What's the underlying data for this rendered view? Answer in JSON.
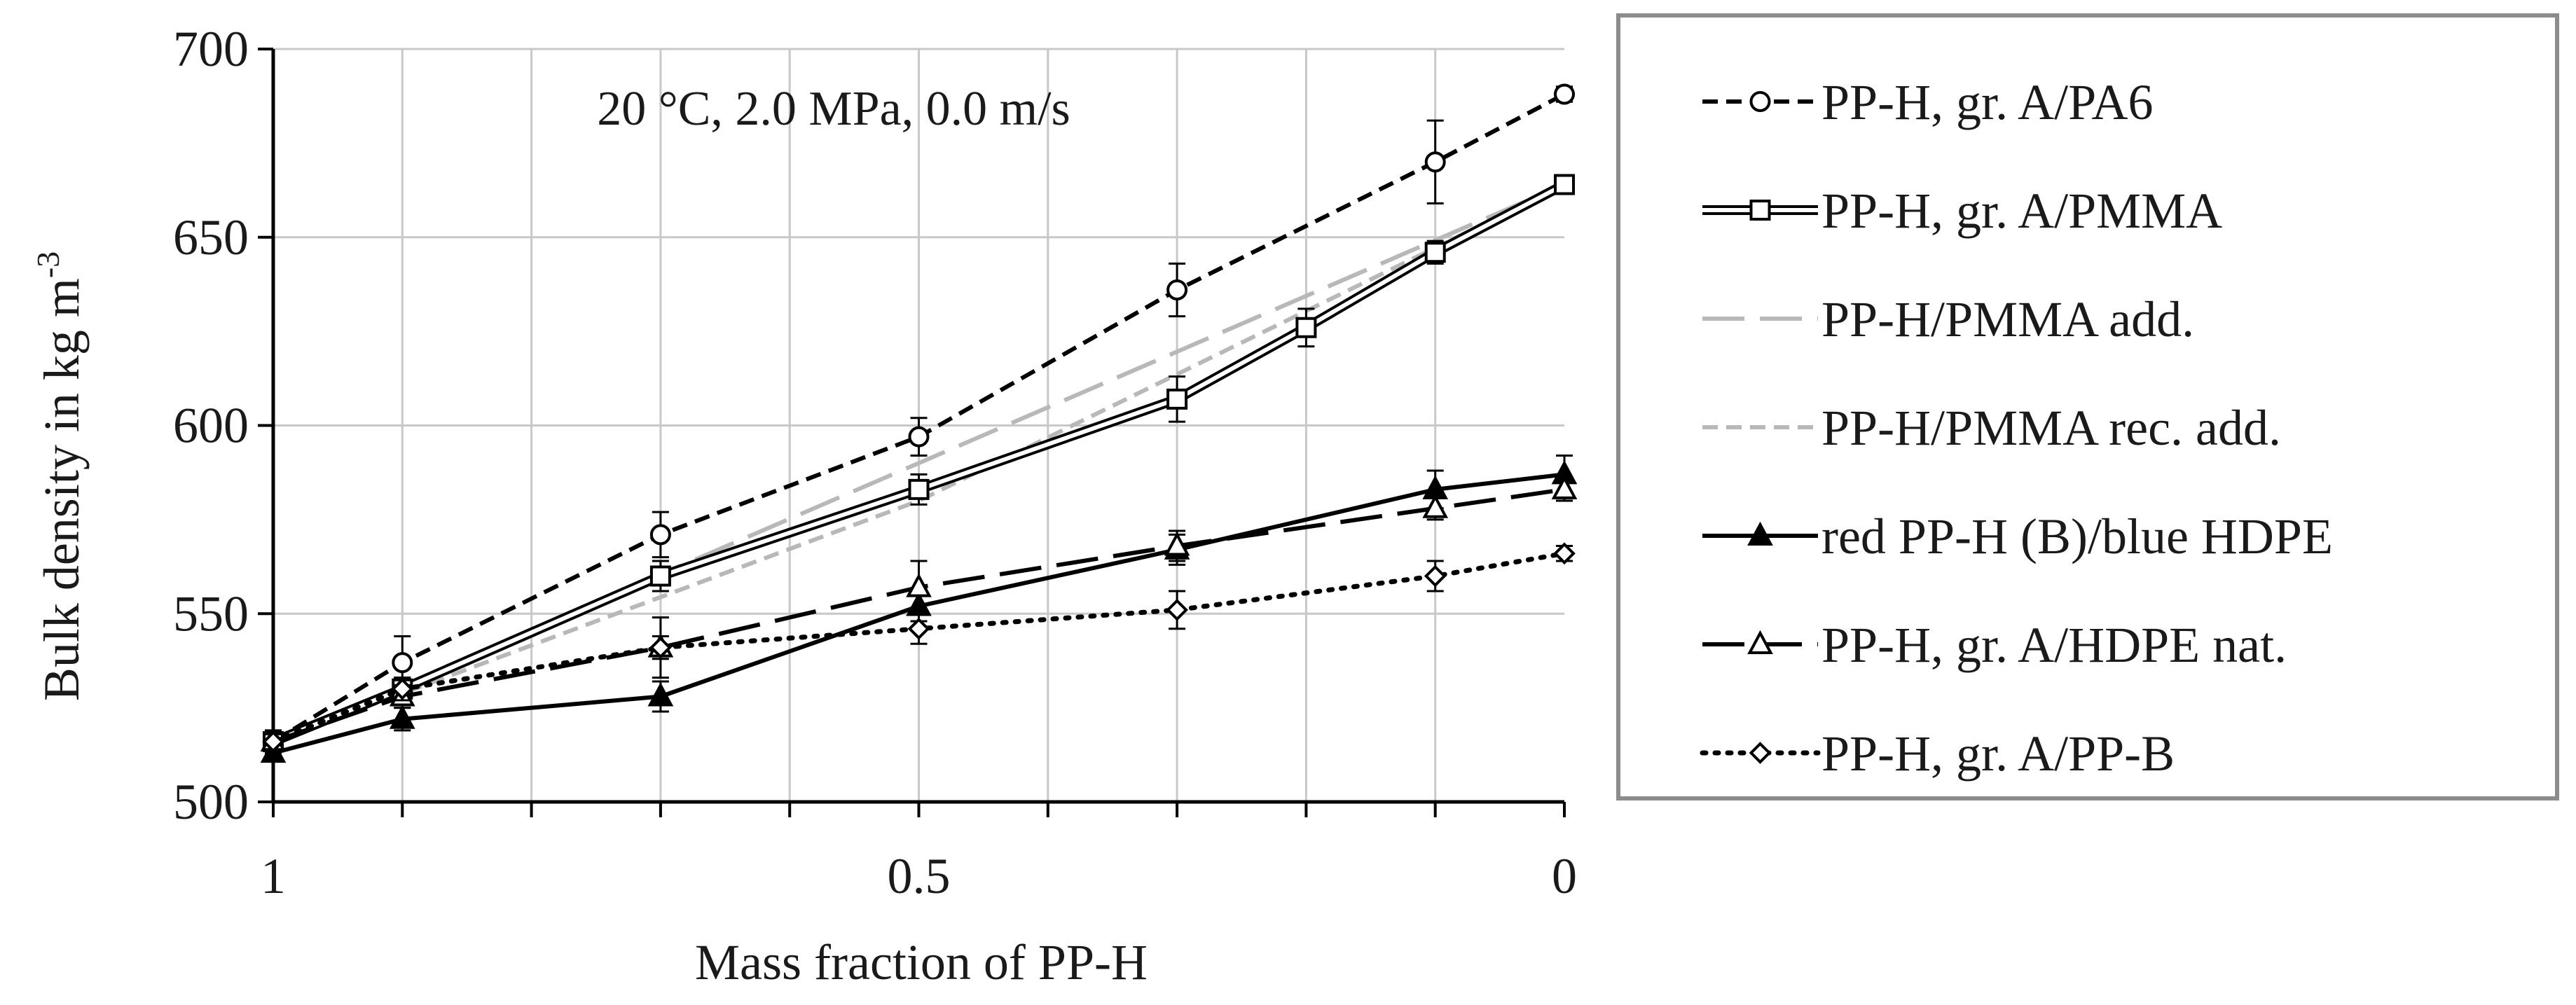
{
  "chart_data": {
    "type": "line",
    "title": "",
    "annotation": "20 °C, 2.0 MPa, 0.0 m/s",
    "xlabel": "Mass fraction of PP-H",
    "ylabel": "Bulk density in kg m",
    "ylabel_sup": "-3",
    "xlim": [
      1,
      0
    ],
    "x_reversed": true,
    "ylim": [
      500,
      700
    ],
    "x_ticks": [
      1,
      0.5,
      0
    ],
    "x_tick_labels": [
      "1",
      "0.5",
      "0"
    ],
    "y_ticks": [
      500,
      550,
      600,
      650,
      700
    ],
    "y_tick_labels": [
      "500",
      "550",
      "600",
      "650",
      "700"
    ],
    "grid": true,
    "legend_position": "right",
    "series": [
      {
        "name": "PP-H, gr. A/PA6",
        "color": "#000000",
        "dash": "dashed",
        "marker": "circle",
        "points": [
          [
            1,
            516
          ],
          [
            0.9,
            537
          ],
          [
            0.7,
            571
          ],
          [
            0.5,
            597
          ],
          [
            0.3,
            636
          ],
          [
            0.1,
            670
          ],
          [
            0,
            688
          ]
        ],
        "error": [
          3,
          7,
          6,
          5,
          7,
          11,
          2
        ]
      },
      {
        "name": "PP-H, gr. A/PMMA",
        "color": "#000000",
        "dash": "double",
        "marker": "square",
        "points": [
          [
            1,
            516
          ],
          [
            0.9,
            530
          ],
          [
            0.7,
            560
          ],
          [
            0.5,
            583
          ],
          [
            0.3,
            607
          ],
          [
            0.2,
            626
          ],
          [
            0.1,
            646
          ],
          [
            0,
            664
          ]
        ],
        "error": [
          2,
          3,
          4,
          4,
          6,
          5,
          3,
          2
        ]
      },
      {
        "name": "PP-H/PMMA add.",
        "color": "#b8b8b8",
        "dash": "longdash",
        "marker": "none",
        "points": [
          [
            1,
            516
          ],
          [
            0.5,
            590
          ],
          [
            0,
            664
          ]
        ],
        "error": []
      },
      {
        "name": "PP-H/PMMA rec. add.",
        "color": "#b8b8b8",
        "dash": "dashed",
        "marker": "none",
        "points": [
          [
            1,
            516
          ],
          [
            0.5,
            580
          ],
          [
            0,
            664
          ]
        ],
        "error": []
      },
      {
        "name": "red PP-H (B)/blue HDPE",
        "color": "#000000",
        "dash": "solid",
        "marker": "triangle-filled",
        "points": [
          [
            1,
            513
          ],
          [
            0.9,
            522
          ],
          [
            0.7,
            528
          ],
          [
            0.5,
            552
          ],
          [
            0.3,
            567
          ],
          [
            0.1,
            583
          ],
          [
            0,
            587
          ]
        ],
        "error": [
          2,
          3,
          4,
          4,
          4,
          5,
          5
        ]
      },
      {
        "name": "PP-H, gr. A/HDPE nat.",
        "color": "#000000",
        "dash": "longdash",
        "marker": "triangle-open",
        "points": [
          [
            1,
            516
          ],
          [
            0.9,
            528
          ],
          [
            0.7,
            541
          ],
          [
            0.5,
            557
          ],
          [
            0.3,
            568
          ],
          [
            0.1,
            578
          ],
          [
            0,
            583
          ]
        ],
        "error": [
          2,
          3,
          8,
          7,
          4,
          3,
          3
        ]
      },
      {
        "name": "PP-H, gr. A/PP-B",
        "color": "#000000",
        "dash": "dotted",
        "marker": "diamond",
        "points": [
          [
            1,
            516
          ],
          [
            0.9,
            530
          ],
          [
            0.7,
            541
          ],
          [
            0.5,
            546
          ],
          [
            0.3,
            551
          ],
          [
            0.1,
            560
          ],
          [
            0,
            566
          ]
        ],
        "error": [
          2,
          3,
          3,
          4,
          5,
          4,
          2
        ]
      }
    ]
  }
}
